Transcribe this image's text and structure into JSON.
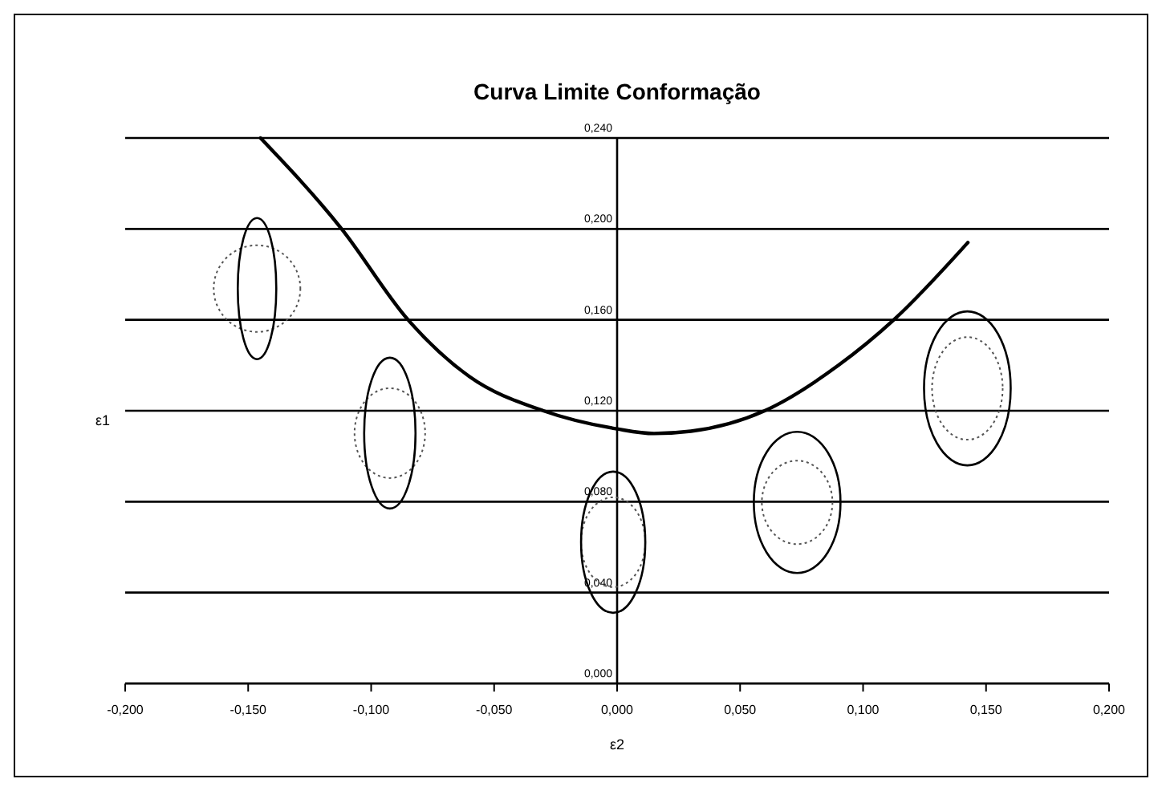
{
  "chart_data": {
    "type": "line",
    "title": "Curva Limite Conformação",
    "xlabel": "ε2",
    "ylabel": "ε1",
    "x": [
      -0.145,
      -0.112,
      -0.085,
      -0.06,
      -0.03,
      0,
      0.015,
      0.03,
      0.06,
      0.09,
      0.1125,
      0.1426
    ],
    "series": [
      {
        "color": "#000000",
        "values": [
          0.24,
          0.2,
          0.16,
          0.135,
          0.12,
          0.112,
          0.11,
          0.111,
          0.12,
          0.14,
          0.16,
          0.194
        ]
      }
    ],
    "xlim": [
      -0.2,
      0.2
    ],
    "ylim": [
      0,
      0.24
    ],
    "xticks": [
      {
        "value": -0.2,
        "label": "-0,200"
      },
      {
        "value": -0.15,
        "label": "-0,150"
      },
      {
        "value": -0.1,
        "label": "-0,100"
      },
      {
        "value": -0.05,
        "label": "-0,050"
      },
      {
        "value": 0,
        "label": "0,000"
      },
      {
        "value": 0.05,
        "label": "0,050"
      },
      {
        "value": 0.1,
        "label": "0,100"
      },
      {
        "value": 0.15,
        "label": "0,150"
      },
      {
        "value": 0.2,
        "label": "0,200"
      }
    ],
    "yticks": [
      {
        "value": 0,
        "label": "0,000"
      },
      {
        "value": 0.04,
        "label": "0,040"
      },
      {
        "value": 0.08,
        "label": "0,080"
      },
      {
        "value": 0.12,
        "label": "0,120"
      },
      {
        "value": 0.16,
        "label": "0,160"
      },
      {
        "value": 0.2,
        "label": "0,200"
      },
      {
        "value": 0.24,
        "label": "0,240"
      }
    ],
    "grid": "y",
    "marker": "none",
    "line_style": "solid"
  }
}
